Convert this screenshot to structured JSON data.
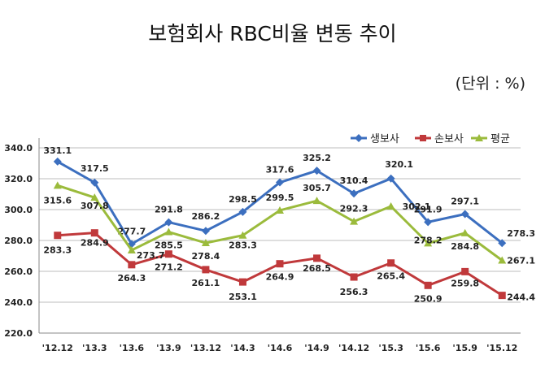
{
  "chart_data": {
    "type": "line",
    "title": "보험회사 RBC비율 변동 추이",
    "unit_note": "(단위 : %)",
    "categories": [
      "'12.12",
      "'13.3",
      "'13.6",
      "'13.9",
      "'13.12",
      "'14.3",
      "'14.6",
      "'14.9",
      "'14.12",
      "'15.3",
      "'15.6",
      "'15.9",
      "'15.12"
    ],
    "ylim": [
      220,
      340
    ],
    "yticks": [
      "340.0",
      "320.0",
      "300.0",
      "280.0",
      "260.0",
      "240.0",
      "220.0"
    ],
    "grid": true,
    "legend_position": "top-right",
    "series": [
      {
        "name": "생보사",
        "color": "#3c6fbf",
        "marker": "diamond",
        "values": [
          331.1,
          317.5,
          277.7,
          291.8,
          286.2,
          298.5,
          317.6,
          325.2,
          310.4,
          320.1,
          291.9,
          297.1,
          278.3
        ],
        "labels": [
          "331.1",
          "317.5",
          "277.7",
          "291.8",
          "286.2",
          "298.5",
          "317.6",
          "325.2",
          "310.4",
          "320.1",
          "291.9",
          "297.1",
          "278.3"
        ]
      },
      {
        "name": "손보사",
        "color": "#c0393b",
        "marker": "square",
        "values": [
          283.3,
          284.9,
          264.3,
          271.2,
          261.1,
          253.1,
          264.9,
          268.5,
          256.3,
          265.4,
          250.9,
          259.8,
          244.4
        ],
        "labels": [
          "283.3",
          "284.9",
          "264.3",
          "271.2",
          "261.1",
          "253.1",
          "264.9",
          "268.5",
          "256.3",
          "265.4",
          "250.9",
          "259.8",
          "244.4"
        ]
      },
      {
        "name": "평균",
        "color": "#9bbb3c",
        "marker": "triangle",
        "values": [
          315.6,
          307.8,
          273.7,
          285.5,
          278.4,
          283.3,
          299.5,
          305.7,
          292.3,
          302.1,
          278.2,
          284.8,
          267.1
        ],
        "labels": [
          "315.6",
          "307.8",
          "273.7",
          "285.5",
          "278.4",
          "283.3",
          "299.5",
          "305.7",
          "292.3",
          "302.1",
          "278.2",
          "284.8",
          "267.1"
        ]
      }
    ]
  }
}
